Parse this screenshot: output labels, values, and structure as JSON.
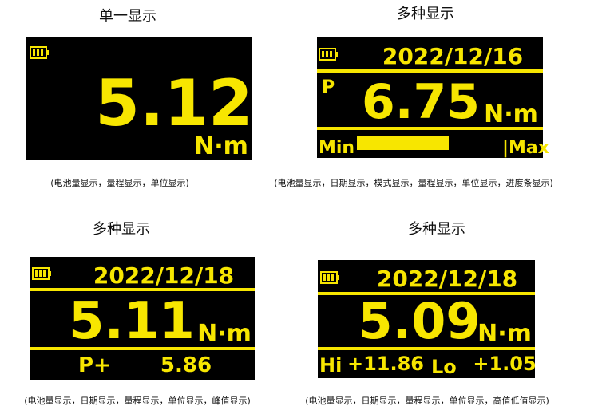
{
  "panels": [
    {
      "title": "单一显示",
      "value": "5.12",
      "unit": "N·m",
      "caption": "(电池量显示，量程显示，单位显示)"
    },
    {
      "title": "多种显示",
      "date": "2022/12/16",
      "mode": "P",
      "value": "6.75",
      "unit": "N·m",
      "bar_min": "Min",
      "bar_max": "|Max",
      "caption": "(电池量显示，日期显示，模式显示，量程显示，单位显示，进度条显示)"
    },
    {
      "title": "多种显示",
      "date": "2022/12/18",
      "value": "5.11",
      "unit": "N·m",
      "peak_label": "P+",
      "peak_value": "5.86",
      "caption": "(电池量显示，日期显示，量程显示，单位显示，峰值显示)"
    },
    {
      "title": "多种显示",
      "date": "2022/12/18",
      "value": "5.09",
      "unit": "N·m",
      "hi_label": "Hi",
      "hi_value": "+11.86",
      "lo_label": "Lo",
      "lo_value": "+1.05",
      "caption": "(电池量显示，日期显示，量程显示，单位显示，高值低值显示)"
    }
  ]
}
